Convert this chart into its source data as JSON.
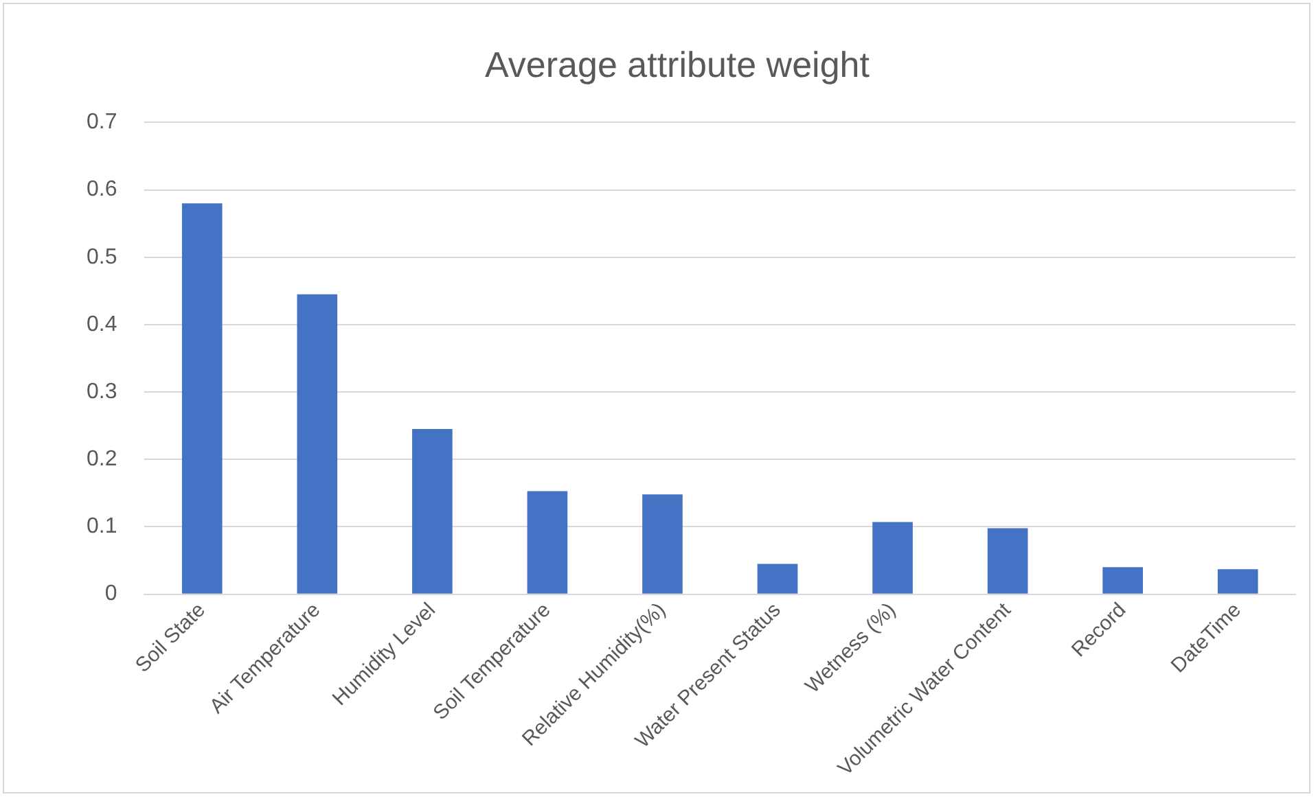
{
  "chart_data": {
    "type": "bar",
    "title": "Average attribute weight",
    "categories": [
      "Soil State",
      "Air Temperature",
      "Humidity Level",
      "Soil Temperature",
      "Relative Humidity(%)",
      "Water Present Status",
      "Wetness (%)",
      "Volumetric Water Content",
      "Record",
      "DateTime"
    ],
    "values": [
      0.58,
      0.445,
      0.245,
      0.153,
      0.148,
      0.045,
      0.107,
      0.098,
      0.04,
      0.037
    ],
    "color": "#4472c4",
    "ylim": [
      0,
      0.7
    ],
    "yticks": [
      0,
      0.1,
      0.2,
      0.3,
      0.4,
      0.5,
      0.6,
      0.7
    ],
    "grid": "y"
  }
}
